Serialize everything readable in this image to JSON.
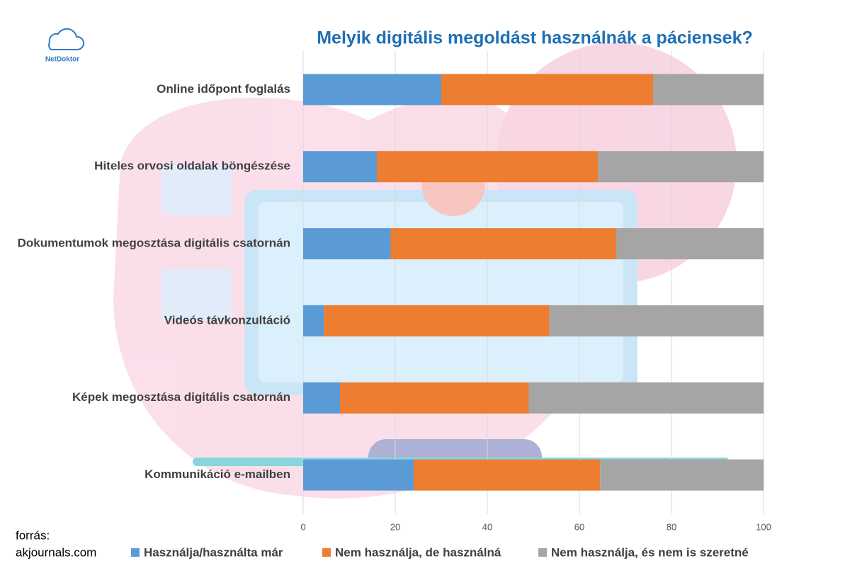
{
  "chart_data": {
    "type": "stacked_barh",
    "title": "Melyik digitális megoldást használnák a páciensek?",
    "logo": "NetDoktor",
    "source_label": "forrás:",
    "source": "akjournals.com",
    "categories": [
      "Online időpont foglalás",
      "Hiteles orvosi oldalak böngészése",
      "Dokumentumok megosztása digitális csatornán",
      "Videós távkonzultáció",
      "Képek megosztása digitális csatornán",
      "Kommunikáció e-mailben"
    ],
    "series": [
      {
        "name": "Használja/használta már",
        "color": "#5b9bd5",
        "values": [
          30,
          16,
          19,
          4.5,
          8,
          24
        ]
      },
      {
        "name": "Nem használja, de használná",
        "color": "#ed7d31",
        "values": [
          46,
          48,
          49,
          49,
          41,
          40.5
        ]
      },
      {
        "name": "Nem használja, és nem is szeretné",
        "color": "#a5a5a5",
        "values": [
          24,
          36,
          32,
          46.5,
          51,
          35.5
        ]
      }
    ],
    "xlim": [
      0,
      100
    ],
    "xticks": [
      0,
      20,
      40,
      60,
      80,
      100
    ],
    "grid": true,
    "legend": "bottom"
  }
}
